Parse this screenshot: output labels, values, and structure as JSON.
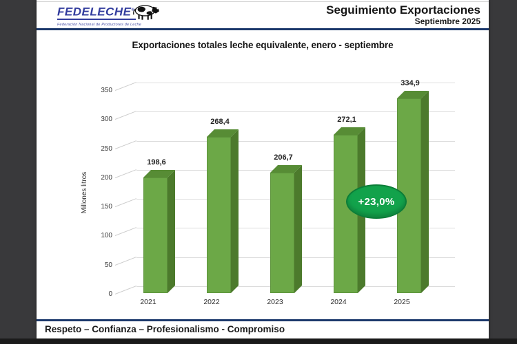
{
  "window": {
    "background_color": "#39393b",
    "bottom_strip_color": "#1b1b1b",
    "accent_navy": "#1b386b"
  },
  "header": {
    "logo": {
      "brand": "FEDELECHE",
      "registered_mark": "®",
      "tagline": "Federación Nacional de Productores de Leche",
      "brand_color": "#333d9e"
    },
    "title": "Seguimiento Exportaciones",
    "subtitle": "Septiembre 2025"
  },
  "chart_data": {
    "type": "bar",
    "style": "3d",
    "title": "Exportaciones totales leche equivalente, enero - septiembre",
    "categories": [
      "2021",
      "2022",
      "2023",
      "2024",
      "2025"
    ],
    "values": [
      198.6,
      268.4,
      206.7,
      272.1,
      334.9
    ],
    "value_labels": [
      "198,6",
      "268,4",
      "206,7",
      "272,1",
      "334,9"
    ],
    "xlabel": "",
    "ylabel": "Millones litros",
    "ylim": [
      0,
      350
    ],
    "ytick_step": 50,
    "yticks": [
      "0",
      "50",
      "100",
      "150",
      "200",
      "250",
      "300",
      "350"
    ],
    "grid": true,
    "legend": false,
    "annotation": {
      "text": "+23,0%",
      "fill": "#12a24b",
      "border": "#0c7d38",
      "text_color": "#ffffff"
    },
    "bar_colors": {
      "front": "#6ca847",
      "top": "#578c35",
      "side": "#4c7a2c"
    }
  },
  "footer": {
    "text": "Respeto – Confianza – Profesionalismo - Compromiso"
  }
}
